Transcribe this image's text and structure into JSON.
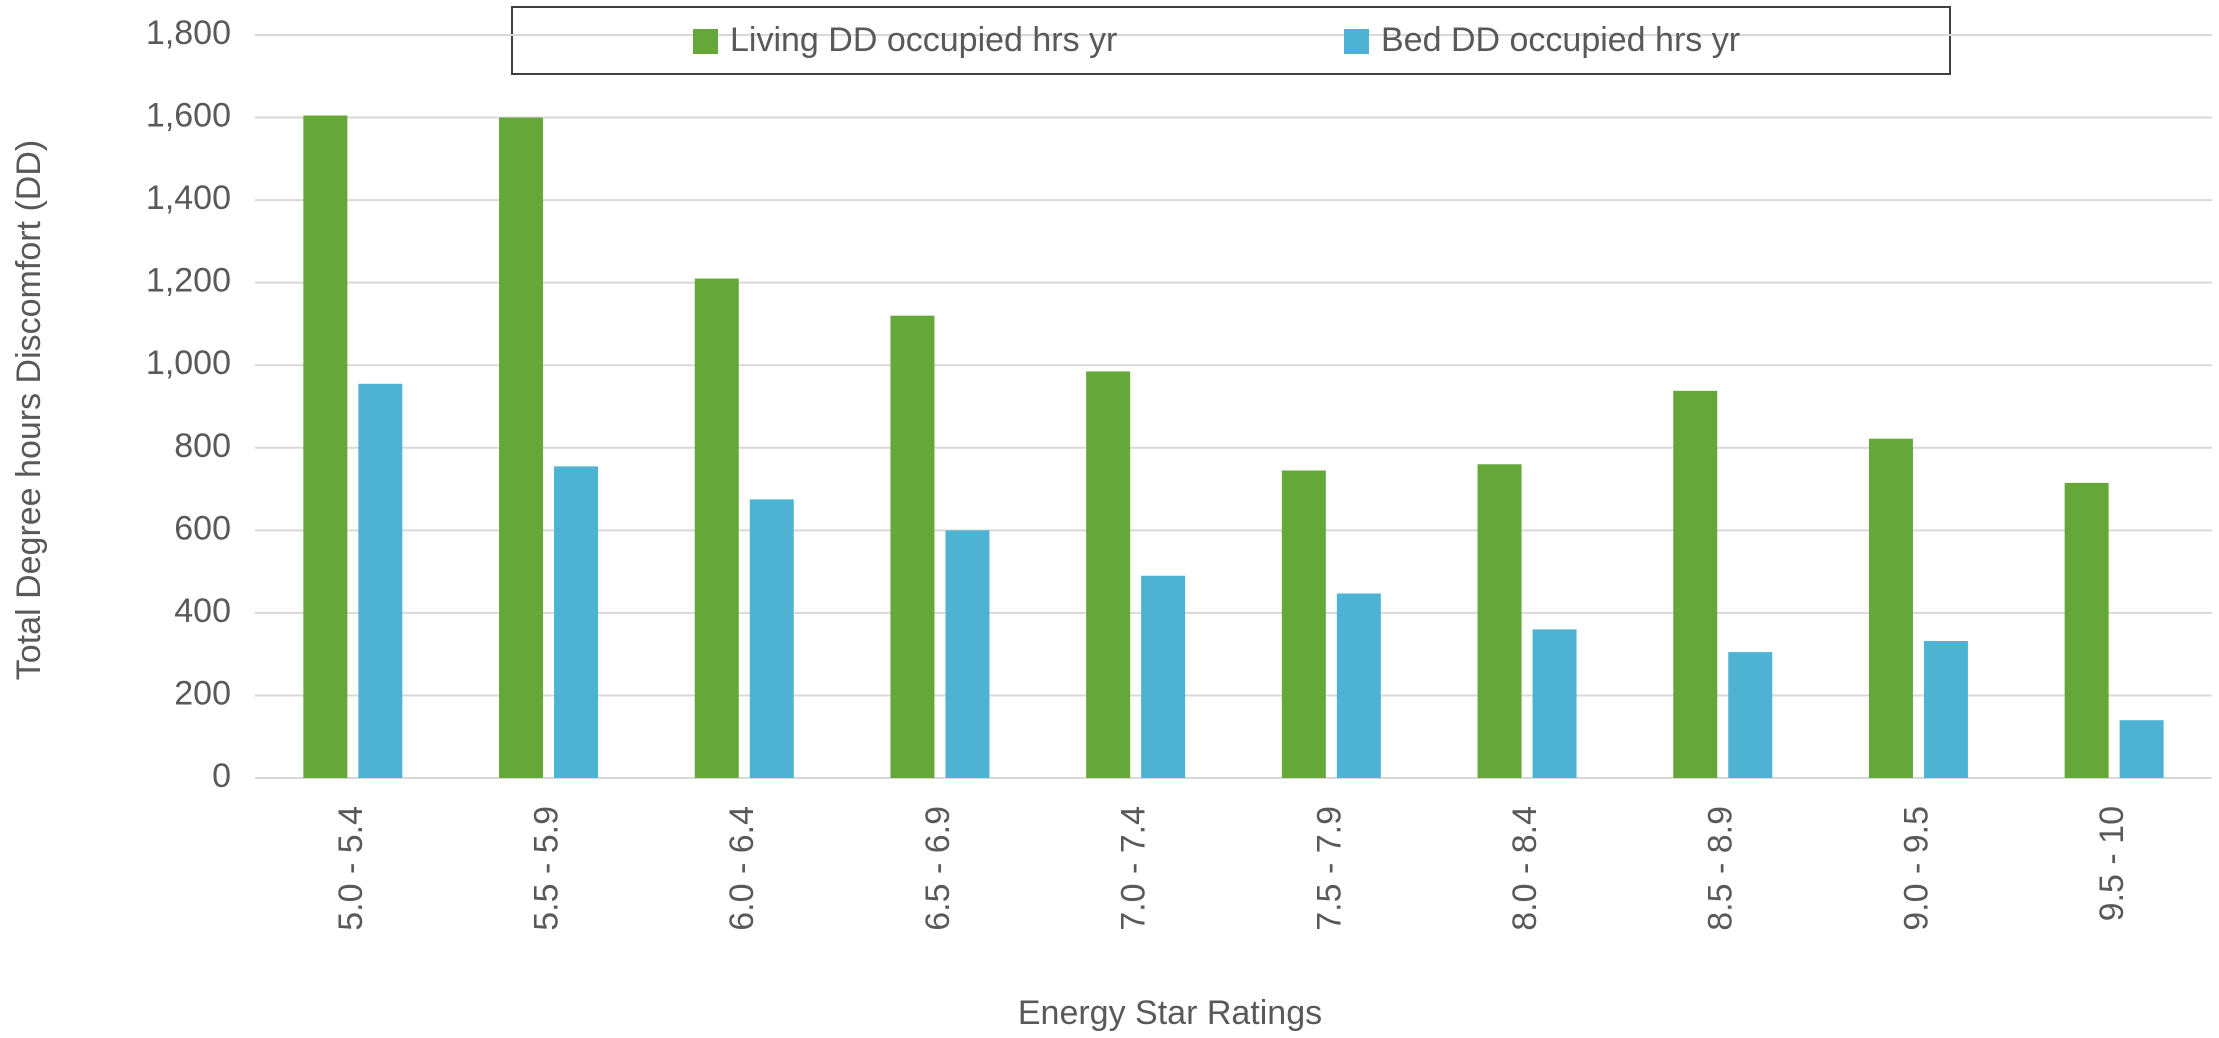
{
  "chart_data": {
    "type": "bar",
    "xlabel": "Energy Star Ratings",
    "ylabel": "Total Degree hours Discomfort (DD)",
    "categories": [
      "5.0 - 5.4",
      "5.5 - 5.9",
      "6.0 - 6.4",
      "6.5 - 6.9",
      "7.0 - 7.4",
      "7.5 - 7.9",
      "8.0 - 8.4",
      "8.5 - 8.9",
      "9.0 - 9.5",
      "9.5 - 10"
    ],
    "series": [
      {
        "name": "Living DD occupied hrs yr",
        "color": "#66a73a",
        "values": [
          1605,
          1600,
          1210,
          1120,
          985,
          745,
          760,
          938,
          822,
          715
        ]
      },
      {
        "name": "Bed DD occupied hrs yr",
        "color": "#4eb3d3",
        "values": [
          955,
          755,
          675,
          600,
          490,
          447,
          360,
          305,
          332,
          140
        ]
      }
    ],
    "ylim": [
      0,
      1800
    ],
    "yticks": [
      0,
      200,
      400,
      600,
      800,
      {
        "value": 1000,
        "label": "1,000"
      },
      {
        "value": 1200,
        "label": "1,200"
      },
      {
        "value": 1400,
        "label": "1,400"
      },
      {
        "value": 1600,
        "label": "1,600"
      },
      {
        "value": 1800,
        "label": "1,800"
      }
    ],
    "grid": true,
    "legend": "top"
  }
}
